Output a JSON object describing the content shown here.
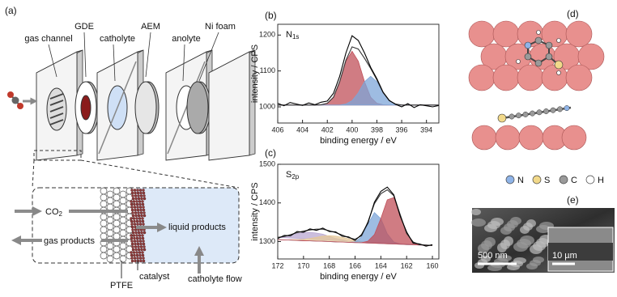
{
  "panels": {
    "a": "(a)",
    "b": "(b)",
    "c": "(c)",
    "d": "(d)",
    "e": "(e)"
  },
  "cell_diagram": {
    "labels": {
      "gas_channel": "gas channel",
      "gde": "GDE",
      "catholyte": "catholyte",
      "aem": "AEM",
      "anolyte": "anolyte",
      "ni_foam": "Ni foam"
    },
    "zoom": {
      "co2": "CO",
      "co2_sub": "2",
      "gas_products": "gas products",
      "liquid_products": "liquid products",
      "ptfe": "PTFE",
      "catalyst": "catalyst",
      "catholyte_flow": "catholyte flow"
    }
  },
  "chart_data": [
    {
      "type": "line",
      "label": "N",
      "label_sub": "1s",
      "xlabel": "binding energy / eV",
      "ylabel": "intensity / CPS",
      "xlim": [
        406,
        393
      ],
      "ylim": [
        955,
        1230
      ],
      "xticks": [
        406,
        404,
        402,
        400,
        398,
        396,
        394
      ],
      "yticks": [
        1000,
        1100,
        1200
      ],
      "x": [
        406,
        405.5,
        405,
        404.5,
        404,
        403.5,
        403,
        402.5,
        402,
        401.5,
        401,
        400.5,
        400,
        399.5,
        399,
        398.5,
        398,
        397.5,
        397,
        396.5,
        396,
        395.5,
        395,
        394.5,
        394,
        393.5,
        393
      ],
      "series": [
        {
          "color": "#c0505a",
          "fill": true,
          "values": [
            1005,
            1005,
            1005,
            1005,
            1005,
            1005,
            1005,
            1006,
            1010,
            1027,
            1070,
            1127,
            1155,
            1127,
            1070,
            1027,
            1010,
            1006,
            1005,
            1005,
            1005,
            1005,
            1005,
            1005,
            1005,
            1005,
            1005
          ]
        },
        {
          "color": "#7ea6d8",
          "fill": true,
          "values": [
            1005,
            1005,
            1005,
            1005,
            1005,
            1005,
            1005,
            1005,
            1005,
            1005,
            1005,
            1008,
            1017,
            1039,
            1070,
            1085,
            1070,
            1039,
            1017,
            1008,
            1005,
            1005,
            1005,
            1005,
            1005,
            1005,
            1005
          ]
        },
        {
          "color": "#333333",
          "fill": false,
          "values": [
            1005,
            1005,
            1005,
            1005,
            1005,
            1005,
            1005,
            1006,
            1010,
            1027,
            1070,
            1130,
            1167,
            1161,
            1135,
            1107,
            1075,
            1040,
            1017,
            1008,
            1005,
            1005,
            1005,
            1005,
            1005,
            1005,
            1005
          ]
        },
        {
          "color": "#000000",
          "fill": false,
          "values": [
            1010,
            1003,
            1012,
            1008,
            1004,
            1011,
            1006,
            1013,
            1016,
            1038,
            1085,
            1150,
            1198,
            1185,
            1150,
            1110,
            1078,
            1041,
            1018,
            1007,
            1000,
            1009,
            998,
            1006,
            1003,
            1000,
            1004
          ]
        }
      ]
    },
    {
      "type": "line",
      "label": "S",
      "label_sub": "2p",
      "xlabel": "binding energy / eV",
      "ylabel": "intensity / CPS",
      "xlim": [
        172,
        159.5
      ],
      "ylim": [
        1255,
        1500
      ],
      "xticks": [
        172,
        170,
        168,
        166,
        164,
        162,
        160
      ],
      "yticks": [
        1300,
        1400,
        1500
      ],
      "x": [
        172,
        171.5,
        171,
        170.5,
        170,
        169.5,
        169,
        168.5,
        168,
        167.5,
        167,
        166.5,
        166,
        165.5,
        165,
        164.5,
        164,
        163.5,
        163,
        162.5,
        162,
        161.5,
        161,
        160.5,
        160
      ],
      "series": [
        {
          "color": "#b9a8d2",
          "fill": true,
          "values": [
            1311,
            1313,
            1317,
            1321,
            1323,
            1324,
            1322,
            1319,
            1313,
            1308,
            1305,
            1301,
            1298,
            1297,
            1296,
            1296,
            1295,
            1294,
            1294,
            1293,
            1292,
            1292,
            1291,
            1291,
            1290
          ]
        },
        {
          "color": "#e6c898",
          "fill": true,
          "values": [
            1305,
            1304,
            1305,
            1305,
            1306,
            1308,
            1311,
            1314,
            1315,
            1314,
            1311,
            1307,
            1303,
            1300,
            1297,
            1297,
            1295,
            1294,
            1294,
            1293,
            1292,
            1292,
            1291,
            1291,
            1290
          ]
        },
        {
          "color": "#7ea6d8",
          "fill": true,
          "values": [
            1305,
            1304,
            1304,
            1303,
            1302,
            1302,
            1301,
            1301,
            1300,
            1299,
            1299,
            1298,
            1299,
            1312,
            1345,
            1375,
            1359,
            1320,
            1299,
            1294,
            1292,
            1292,
            1291,
            1291,
            1290
          ]
        },
        {
          "color": "#c0505a",
          "fill": true,
          "values": [
            1305,
            1304,
            1304,
            1303,
            1302,
            1302,
            1301,
            1301,
            1300,
            1299,
            1299,
            1298,
            1297,
            1297,
            1301,
            1318,
            1360,
            1408,
            1414,
            1369,
            1321,
            1299,
            1292,
            1291,
            1290
          ]
        },
        {
          "color": "#333333",
          "fill": false,
          "values": [
            1311,
            1313,
            1318,
            1323,
            1327,
            1330,
            1332,
            1332,
            1328,
            1323,
            1317,
            1310,
            1306,
            1315,
            1351,
            1398,
            1424,
            1434,
            1419,
            1370,
            1321,
            1299,
            1292,
            1291,
            1290
          ]
        },
        {
          "color": "#000000",
          "fill": false,
          "values": [
            1308,
            1316,
            1315,
            1326,
            1324,
            1333,
            1329,
            1335,
            1326,
            1325,
            1314,
            1312,
            1303,
            1318,
            1348,
            1402,
            1430,
            1441,
            1421,
            1366,
            1325,
            1296,
            1294,
            1288,
            1292
          ]
        }
      ]
    }
  ],
  "structure": {
    "legend": [
      {
        "label": "N",
        "color": "#8fb4e8"
      },
      {
        "label": "S",
        "color": "#f2d98a"
      },
      {
        "label": "C",
        "color": "#9a9a9a"
      },
      {
        "label": "H",
        "color": "#ffffff"
      }
    ]
  },
  "sem": {
    "scale_bar": "500 nm",
    "inset_scale_bar": "10 µm"
  }
}
